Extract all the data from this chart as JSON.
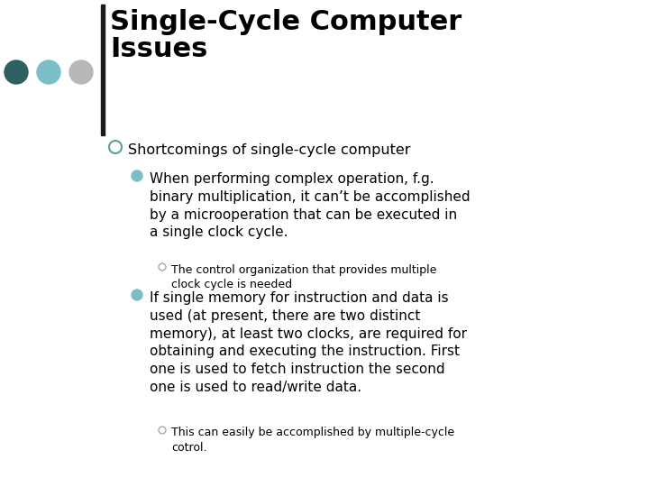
{
  "title_line1": "Single-Cycle Computer",
  "title_line2": "Issues",
  "slide_bg": "#ffffff",
  "title_font_size": 22,
  "title_color": "#000000",
  "dot_colors": [
    "#2e5f63",
    "#7bbec8",
    "#b8b8b8"
  ],
  "bar_color": "#1a1a1a",
  "level0_bullet_color": "#5b9ea0",
  "level1_bullet_color": "#7bbec8",
  "level2_bullet_color": "#aaaaaa",
  "fs_l0": 11.5,
  "fs_l1": 11.0,
  "fs_l2": 9.0,
  "l0_text": "Shortcomings of single-cycle computer",
  "l1_0_text": "When performing complex operation, f.g.\nbinary multiplication, it can’t be accomplished\nby a microoperation that can be executed in\na single clock cycle.",
  "l2_0_text": "The control organization that provides multiple\nclock cycle is needed",
  "l1_1_text": "If single memory for instruction and data is\nused (at present, there are two distinct\nmemory), at least two clocks, are required for\nobtaining and executing the instruction. First\none is used to fetch instruction the second\none is used to read/write data.",
  "l2_1_text": "This can easily be accomplished by multiple-cycle\ncotrol."
}
